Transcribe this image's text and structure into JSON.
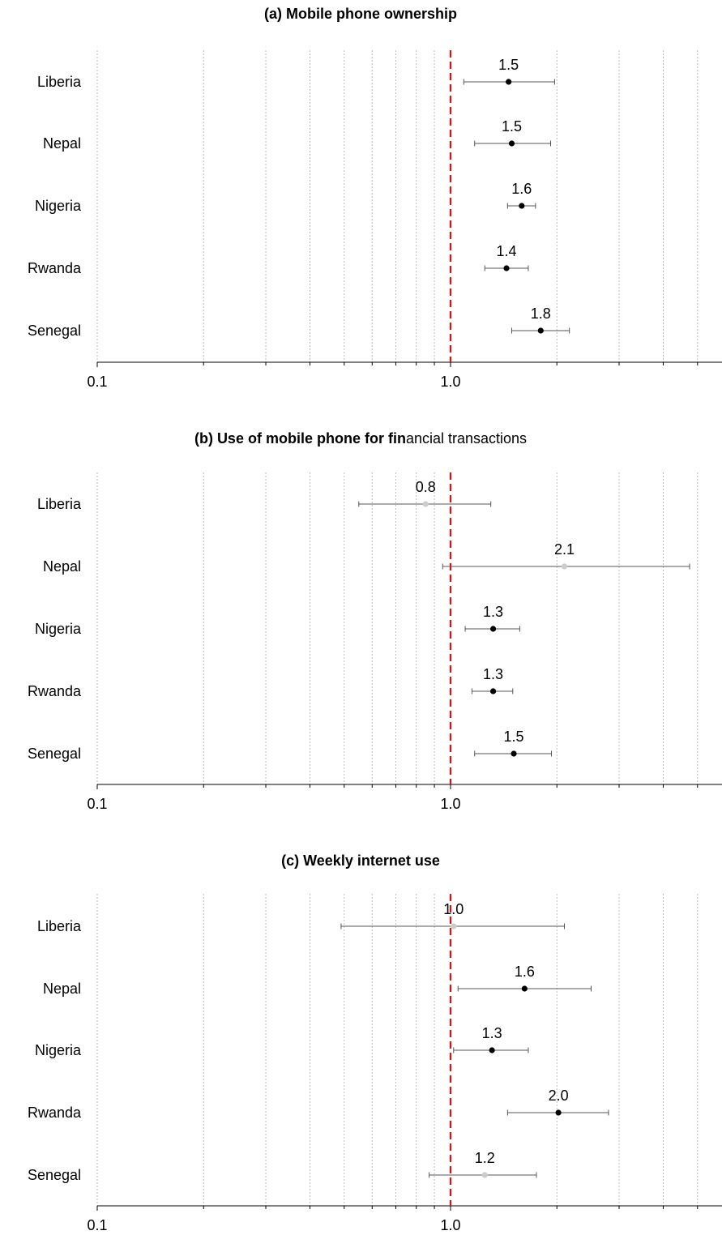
{
  "chart_data": [
    {
      "type": "forest",
      "title_bold": "(a) Mobile phone ownership",
      "title_rest": "",
      "x_scale": "log",
      "xlim": [
        0.1,
        5.0
      ],
      "ref_line": 1.0,
      "x_ticks": [
        {
          "value": 0.1,
          "label": "0.1"
        },
        {
          "value": 1.0,
          "label": "1.0"
        }
      ],
      "rows": [
        {
          "label": "Liberia",
          "estimate": 1.46,
          "ci": [
            1.09,
            1.97
          ],
          "value_label": "1.5",
          "significant": true
        },
        {
          "label": "Nepal",
          "estimate": 1.49,
          "ci": [
            1.17,
            1.92
          ],
          "value_label": "1.5",
          "significant": true
        },
        {
          "label": "Nigeria",
          "estimate": 1.59,
          "ci": [
            1.45,
            1.74
          ],
          "value_label": "1.6",
          "significant": true
        },
        {
          "label": "Rwanda",
          "estimate": 1.44,
          "ci": [
            1.25,
            1.66
          ],
          "value_label": "1.4",
          "significant": true
        },
        {
          "label": "Senegal",
          "estimate": 1.8,
          "ci": [
            1.49,
            2.17
          ],
          "value_label": "1.8",
          "significant": true
        }
      ]
    },
    {
      "type": "forest",
      "title_bold": "(b) Use of mobile phone for fin",
      "title_rest": "ancial transactions",
      "x_scale": "log",
      "xlim": [
        0.1,
        5.0
      ],
      "ref_line": 1.0,
      "x_ticks": [
        {
          "value": 0.1,
          "label": "0.1"
        },
        {
          "value": 1.0,
          "label": "1.0"
        }
      ],
      "rows": [
        {
          "label": "Liberia",
          "estimate": 0.85,
          "ci": [
            0.55,
            1.3
          ],
          "value_label": "0.8",
          "significant": false
        },
        {
          "label": "Nepal",
          "estimate": 2.1,
          "ci": [
            0.95,
            4.75
          ],
          "value_label": "2.1",
          "significant": false
        },
        {
          "label": "Nigeria",
          "estimate": 1.32,
          "ci": [
            1.1,
            1.57
          ],
          "value_label": "1.3",
          "significant": true
        },
        {
          "label": "Rwanda",
          "estimate": 1.32,
          "ci": [
            1.15,
            1.5
          ],
          "value_label": "1.3",
          "significant": true
        },
        {
          "label": "Senegal",
          "estimate": 1.51,
          "ci": [
            1.17,
            1.93
          ],
          "value_label": "1.5",
          "significant": true
        }
      ]
    },
    {
      "type": "forest",
      "title_bold": "(c) Weekly internet use",
      "title_rest": "",
      "x_scale": "log",
      "xlim": [
        0.1,
        5.0
      ],
      "ref_line": 1.0,
      "x_ticks": [
        {
          "value": 0.1,
          "label": "0.1"
        },
        {
          "value": 1.0,
          "label": "1.0"
        }
      ],
      "rows": [
        {
          "label": "Liberia",
          "estimate": 1.02,
          "ci": [
            0.49,
            2.1
          ],
          "value_label": "1.0",
          "significant": false
        },
        {
          "label": "Nepal",
          "estimate": 1.62,
          "ci": [
            1.05,
            2.5
          ],
          "value_label": "1.6",
          "significant": true
        },
        {
          "label": "Nigeria",
          "estimate": 1.31,
          "ci": [
            1.02,
            1.66
          ],
          "value_label": "1.3",
          "significant": true
        },
        {
          "label": "Rwanda",
          "estimate": 2.02,
          "ci": [
            1.45,
            2.8
          ],
          "value_label": "2.0",
          "significant": true
        },
        {
          "label": "Senegal",
          "estimate": 1.25,
          "ci": [
            0.87,
            1.75
          ],
          "value_label": "1.2",
          "significant": false
        }
      ]
    }
  ],
  "colors": {
    "point_significant": "#000000",
    "point_not_significant": "#cccccc",
    "ci_line": "#555555",
    "ref_line": "#dd1111",
    "grid": "#bbbbbb",
    "axis": "#000000",
    "text": "#000000"
  }
}
